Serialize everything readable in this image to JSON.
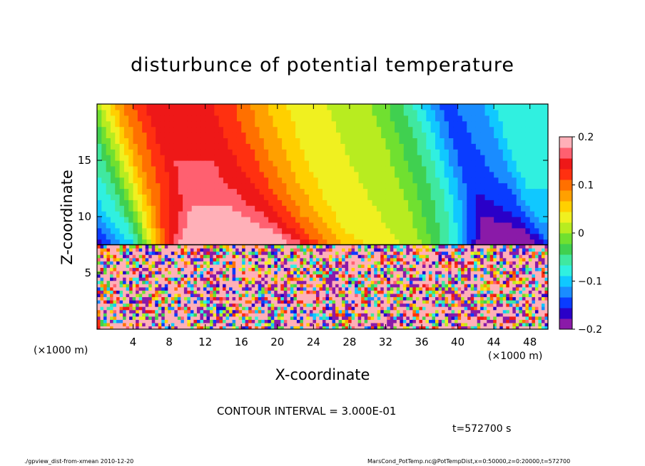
{
  "chart_data": {
    "type": "heatmap",
    "title": "disturbunce of potential temperature",
    "xlabel": "X-coordinate",
    "ylabel": "Z-coordinate",
    "x_unit_label": "(×1000 m)",
    "x_ticks": [
      4,
      8,
      12,
      16,
      20,
      24,
      28,
      32,
      36,
      40,
      44,
      48
    ],
    "y_ticks": [
      5,
      10,
      15
    ],
    "xlim": [
      0,
      50
    ],
    "ylim": [
      0,
      20
    ],
    "colorbar": {
      "min": -0.2,
      "max": 0.2,
      "tick_values": [
        0.2,
        0.1,
        0,
        -0.1,
        -0.2
      ],
      "tick_labels": [
        "0.2",
        "0.1",
        "0",
        "−0.1",
        "−0.2"
      ],
      "colors": [
        "#8a1aa8",
        "#2a00c8",
        "#0a3cff",
        "#1a8cff",
        "#10c8ff",
        "#30f0e0",
        "#40e8a0",
        "#40d050",
        "#70e030",
        "#b8ec20",
        "#f0f020",
        "#ffd000",
        "#ffa000",
        "#ff7000",
        "#ff3010",
        "#ee1818",
        "#ff6070",
        "#ffb0b8"
      ]
    },
    "contour_interval": "CONTOUR INTERVAL = 3.000E-01",
    "time": "t=572700 s",
    "boundary_layer_top_z": 7.5,
    "upper_field": [
      {
        "x": 0,
        "v": -0.1
      },
      {
        "x": 4,
        "v": -0.05
      },
      {
        "x": 8,
        "v": 0.08
      },
      {
        "x": 12,
        "v": 0.15
      },
      {
        "x": 16,
        "v": 0.15
      },
      {
        "x": 20,
        "v": 0.12
      },
      {
        "x": 24,
        "v": 0.07
      },
      {
        "x": 28,
        "v": 0.03
      },
      {
        "x": 32,
        "v": 0.02
      },
      {
        "x": 36,
        "v": 0.0
      },
      {
        "x": 40,
        "v": -0.05
      },
      {
        "x": 44,
        "v": -0.14
      },
      {
        "x": 48,
        "v": -0.12
      },
      {
        "x": 50,
        "v": -0.08
      }
    ]
  },
  "footer": {
    "left": "./gpview_dist-from-xmean   2010-12-20",
    "right": "MarsCond_PotTemp.nc@PotTempDist,x=0:50000,z=0:20000,t=572700"
  }
}
